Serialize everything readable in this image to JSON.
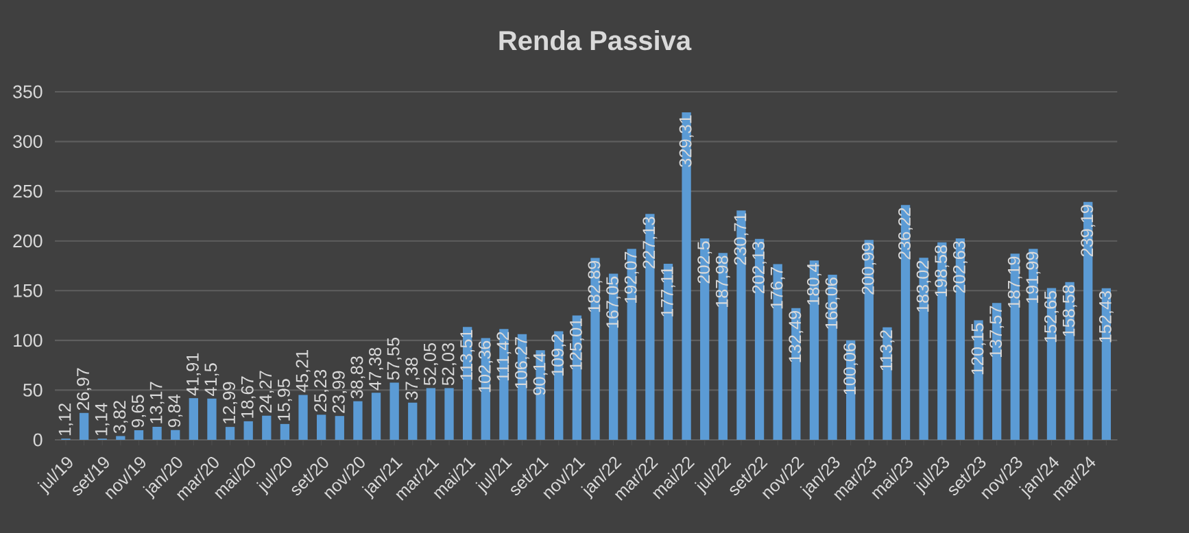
{
  "chart_data": {
    "type": "bar",
    "title": "Renda Passiva",
    "categories": [
      "jul/19",
      null,
      "set/19",
      null,
      "nov/19",
      null,
      "jan/20",
      null,
      "mar/20",
      null,
      "mai/20",
      null,
      "jul/20",
      null,
      "set/20",
      null,
      "nov/20",
      null,
      "jan/21",
      null,
      "mar/21",
      null,
      "mai/21",
      null,
      "jul/21",
      null,
      "set/21",
      null,
      "nov/21",
      null,
      "jan/22",
      null,
      "mar/22",
      null,
      "mai/22",
      null,
      "jul/22",
      null,
      "set/22",
      null,
      "nov/22",
      null,
      "jan/23",
      null,
      "mar/23",
      null,
      "mai/23",
      null,
      "jul/23",
      null,
      "set/23",
      null,
      "nov/23",
      null,
      "jan/24",
      null,
      "mar/24",
      null
    ],
    "values": [
      1.12,
      26.97,
      1.14,
      3.82,
      9.65,
      13.17,
      9.84,
      41.91,
      41.5,
      12.99,
      18.67,
      24.27,
      15.95,
      45.21,
      25.23,
      23.99,
      38.83,
      47.38,
      57.55,
      37.38,
      52.05,
      52.03,
      113.51,
      102.36,
      111.42,
      106.27,
      90.14,
      109.2,
      125.01,
      182.89,
      167.05,
      192.07,
      227.13,
      177.11,
      329.31,
      202.5,
      187.98,
      230.71,
      202.13,
      176.7,
      132.49,
      180.4,
      166.06,
      100.06,
      200.99,
      113.2,
      236.22,
      183.02,
      198.58,
      202.63,
      120.15,
      137.57,
      187.19,
      191.99,
      152.65,
      158.58,
      239.19,
      152.43
    ],
    "value_labels": [
      "1,12",
      "26,97",
      "1,14",
      "3,82",
      "9,65",
      "13,17",
      "9,84",
      "41,91",
      "41,5",
      "12,99",
      "18,67",
      "24,27",
      "15,95",
      "45,21",
      "25,23",
      "23,99",
      "38,83",
      "47,38",
      "57,55",
      "37,38",
      "52,05",
      "52,03",
      "113,51",
      "102,36",
      "111,42",
      "106,27",
      "90,14",
      "109,2",
      "125,01",
      "182,89",
      "167,05",
      "192,07",
      "227,13",
      "177,11",
      "329,31",
      "202,5",
      "187,98",
      "230,71",
      "202,13",
      "176,7",
      "132,49",
      "180,4",
      "166,06",
      "100,06",
      "200,99",
      "113,2",
      "236,22",
      "183,02",
      "198,58",
      "202,63",
      "120,15",
      "137,57",
      "187,19",
      "191,99",
      "152,65",
      "158,58",
      "239,19",
      "152,43"
    ],
    "color": "#5b9bd5",
    "ylim": [
      0,
      350
    ],
    "yticks": [
      0,
      50,
      100,
      150,
      200,
      250,
      300,
      350
    ],
    "grid": "y"
  }
}
